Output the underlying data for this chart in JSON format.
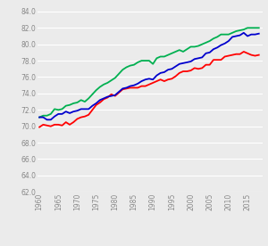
{
  "years": [
    1960,
    1961,
    1962,
    1963,
    1964,
    1965,
    1966,
    1967,
    1968,
    1969,
    1970,
    1971,
    1972,
    1973,
    1974,
    1975,
    1976,
    1977,
    1978,
    1979,
    1980,
    1981,
    1982,
    1983,
    1984,
    1985,
    1986,
    1987,
    1988,
    1989,
    1990,
    1991,
    1992,
    1993,
    1994,
    1995,
    1996,
    1997,
    1998,
    1999,
    2000,
    2001,
    2002,
    2003,
    2004,
    2005,
    2006,
    2007,
    2008,
    2009,
    2010,
    2011,
    2012,
    2013,
    2014,
    2015,
    2016,
    2017,
    2018
  ],
  "canada": [
    71.1,
    71.3,
    71.3,
    71.5,
    72.1,
    72.0,
    72.1,
    72.5,
    72.6,
    72.8,
    72.9,
    73.2,
    73.0,
    73.4,
    73.9,
    74.4,
    74.8,
    75.1,
    75.3,
    75.6,
    75.9,
    76.4,
    76.9,
    77.2,
    77.4,
    77.5,
    77.8,
    78.0,
    78.0,
    78.0,
    77.6,
    78.3,
    78.5,
    78.5,
    78.7,
    78.9,
    79.1,
    79.3,
    79.1,
    79.4,
    79.7,
    79.7,
    79.8,
    80.0,
    80.2,
    80.4,
    80.7,
    80.9,
    81.2,
    81.2,
    81.2,
    81.4,
    81.6,
    81.7,
    81.8,
    82.0,
    82.0,
    82.0,
    82.0
  ],
  "us": [
    69.9,
    70.2,
    70.1,
    70.0,
    70.2,
    70.2,
    70.1,
    70.5,
    70.2,
    70.5,
    70.9,
    71.1,
    71.2,
    71.4,
    72.0,
    72.6,
    72.9,
    73.3,
    73.5,
    73.9,
    73.7,
    74.1,
    74.5,
    74.6,
    74.7,
    74.7,
    74.7,
    74.9,
    74.9,
    75.1,
    75.3,
    75.5,
    75.7,
    75.5,
    75.7,
    75.8,
    76.1,
    76.5,
    76.7,
    76.7,
    76.8,
    77.1,
    77.0,
    77.1,
    77.5,
    77.5,
    78.1,
    78.1,
    78.1,
    78.5,
    78.6,
    78.7,
    78.8,
    78.8,
    79.1,
    78.9,
    78.7,
    78.6,
    78.7
  ],
  "uk": [
    71.1,
    71.1,
    70.8,
    70.8,
    71.2,
    71.5,
    71.5,
    71.8,
    71.6,
    71.8,
    71.9,
    72.1,
    72.1,
    72.1,
    72.5,
    72.8,
    73.2,
    73.4,
    73.6,
    73.7,
    73.8,
    74.2,
    74.6,
    74.7,
    74.9,
    75.0,
    75.2,
    75.5,
    75.7,
    75.8,
    75.7,
    76.2,
    76.5,
    76.6,
    76.9,
    77.0,
    77.3,
    77.6,
    77.7,
    77.8,
    77.9,
    78.2,
    78.3,
    78.4,
    78.9,
    79.0,
    79.4,
    79.6,
    79.9,
    80.1,
    80.4,
    80.9,
    81.0,
    81.1,
    81.4,
    81.0,
    81.2,
    81.2,
    81.3
  ],
  "canada_color": "#00b050",
  "us_color": "#ff0000",
  "uk_color": "#0000cd",
  "bg_color": "#ebebeb",
  "grid_color": "#ffffff",
  "yticks": [
    62.0,
    64.0,
    66.0,
    68.0,
    70.0,
    72.0,
    74.0,
    76.0,
    78.0,
    80.0,
    82.0,
    84.0
  ],
  "xticks": [
    1960,
    1965,
    1970,
    1975,
    1980,
    1985,
    1990,
    1995,
    2000,
    2005,
    2010,
    2015
  ],
  "ylim": [
    62.0,
    84.5
  ],
  "xlim": [
    1959.5,
    2019
  ],
  "line_width": 1.3
}
